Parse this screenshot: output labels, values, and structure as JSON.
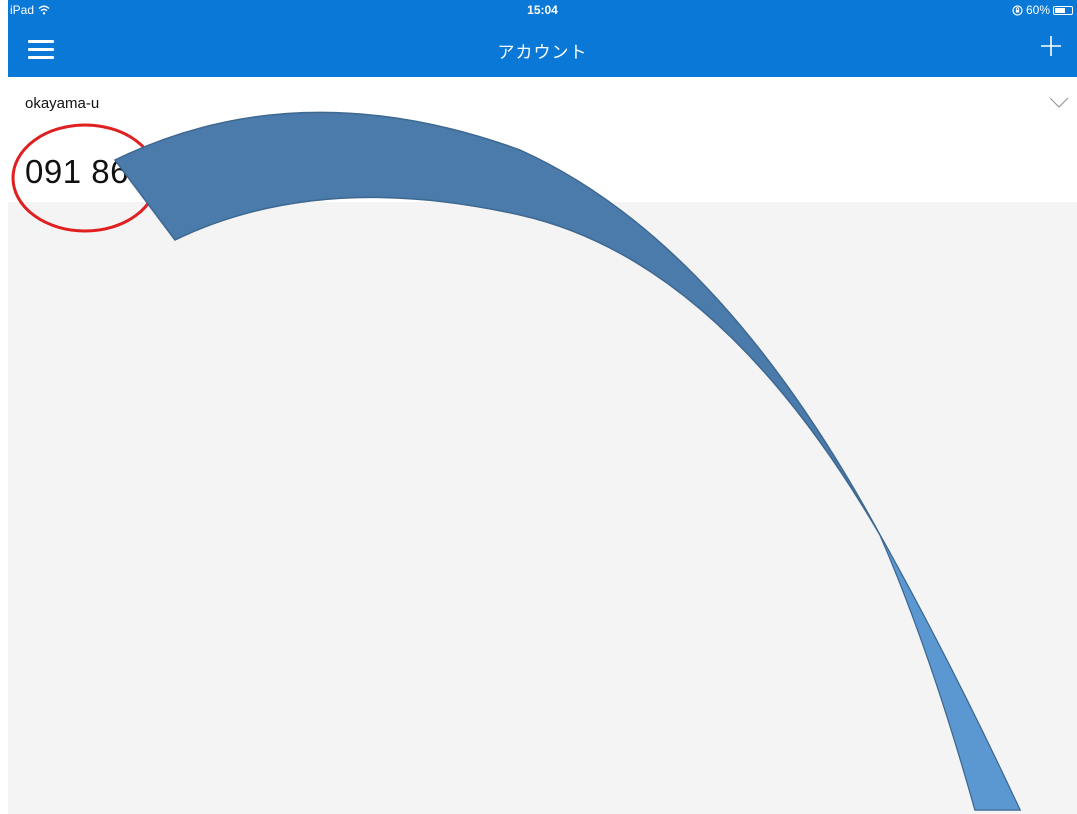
{
  "status_bar": {
    "device": "iPad",
    "time": "15:04",
    "battery": "60%",
    "battery_level": 0.6,
    "icons": [
      "wifi-icon",
      "orientation-lock-icon",
      "battery-icon"
    ]
  },
  "nav": {
    "title": "アカウント",
    "menu_icon": "hamburger-menu-icon",
    "add_icon": "plus-icon"
  },
  "account": {
    "name": "okayama-u",
    "code": "091 86",
    "expand_icon": "chevron-down-icon"
  },
  "annotations": {
    "circle_color": "#e02020",
    "arrow_color": "#4a7bab"
  },
  "colors": {
    "header": "#0a78d7",
    "background": "#f4f4f4",
    "card": "#ffffff"
  }
}
